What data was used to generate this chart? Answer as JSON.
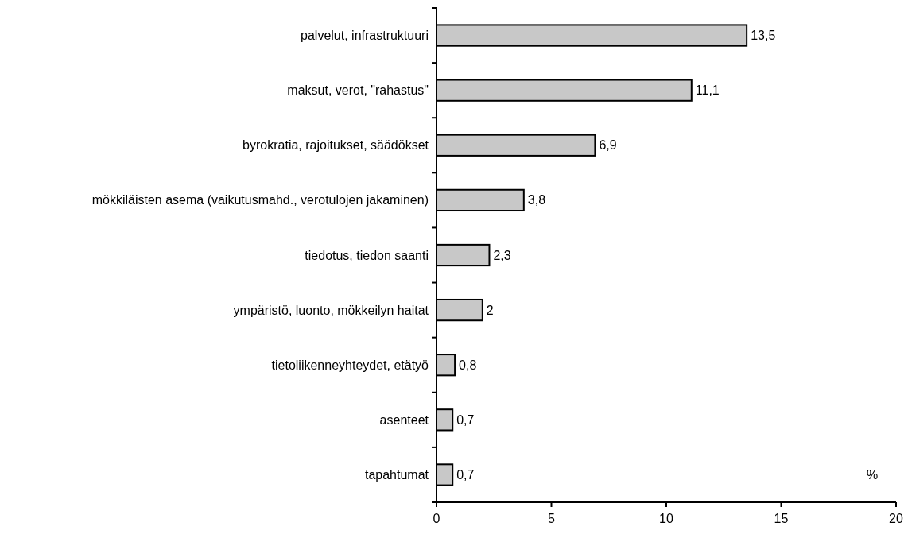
{
  "chart_data": {
    "type": "bar",
    "orientation": "horizontal",
    "xlabel": "%",
    "categories": [
      "palvelut, infrastruktuuri",
      "maksut, verot, \"rahastus\"",
      "byrokratia, rajoitukset, säädökset",
      "mökkiläisten asema (vaikutusmahd., verotulojen jakaminen)",
      "tiedotus, tiedon saanti",
      "ympäristö, luonto, mökkeilyn haitat",
      "tietoliikenneyhteydet, etätyö",
      "asenteet",
      "tapahtumat"
    ],
    "values": [
      13.5,
      11.1,
      6.9,
      3.8,
      2.3,
      2,
      0.8,
      0.7,
      0.7
    ],
    "value_labels": [
      "13,5",
      "11,1",
      "6,9",
      "3,8",
      "2,3",
      "2",
      "0,8",
      "0,7",
      "0,7"
    ],
    "color": "#c8c8c8",
    "xlim": [
      0,
      20
    ],
    "xticks": [
      0,
      5,
      10,
      15,
      20
    ],
    "grid": false
  }
}
